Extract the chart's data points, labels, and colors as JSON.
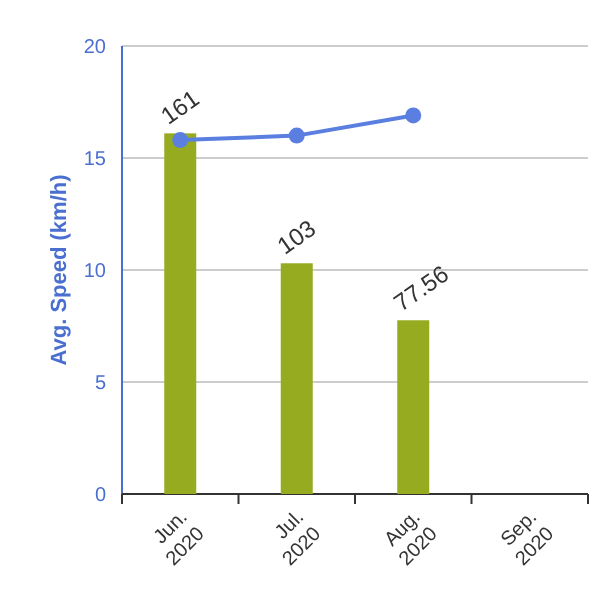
{
  "chart_data": {
    "type": "bar",
    "ylabel": "Avg. Speed (km/h)",
    "categories": [
      "Jun.\n2020",
      "Jul.\n2020",
      "Aug.\n2020",
      "Sep.\n2020"
    ],
    "ylim": [
      0,
      20
    ],
    "yticks": [
      0,
      5,
      10,
      15,
      20
    ],
    "y2lim": [
      0,
      200
    ],
    "grid": "y",
    "series": [
      {
        "axis": "y2",
        "color": "#97ab21",
        "values": [
          161,
          103,
          77.56,
          null
        ],
        "value_labels": [
          "161",
          "103",
          "77.56",
          null
        ]
      },
      {
        "type": "line",
        "axis": "y",
        "color": "#5b7fe0",
        "marker": "circle",
        "values": [
          15.8,
          16.0,
          16.9,
          null
        ]
      }
    ]
  }
}
